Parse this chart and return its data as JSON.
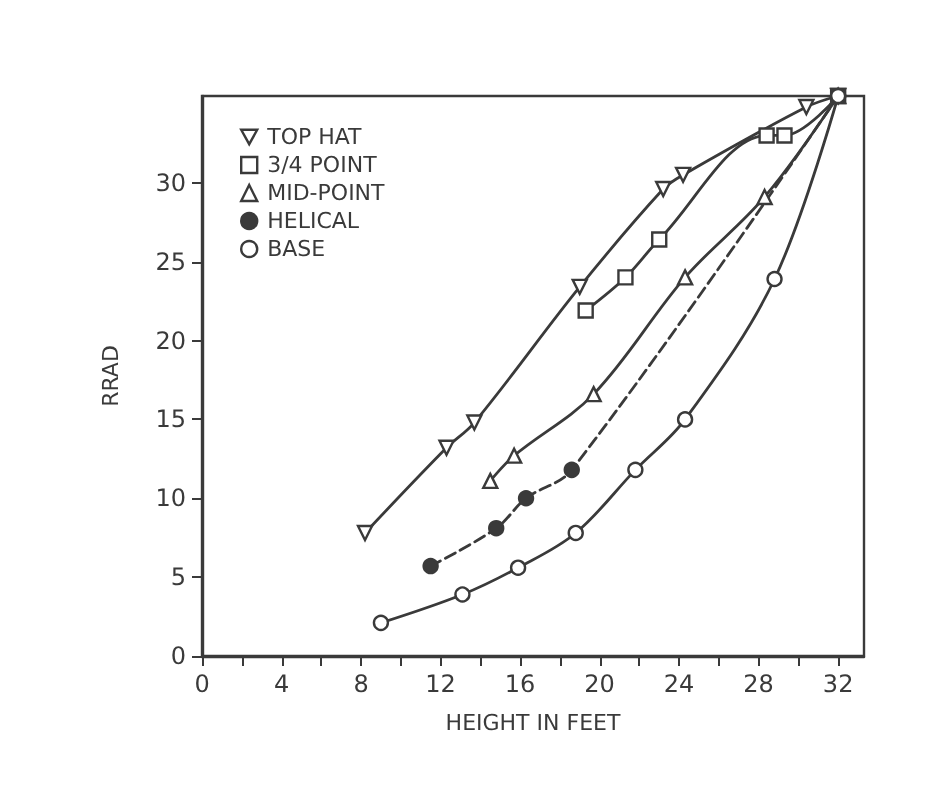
{
  "chart_data": {
    "type": "line",
    "xlabel": "HEIGHT IN FEET",
    "ylabel": "RRAD",
    "xlim": [
      0,
      33.3
    ],
    "ylim": [
      0,
      35.5
    ],
    "xticks": [
      0,
      {
        "value": 2,
        "label": null
      },
      4,
      {
        "value": 6,
        "label": null
      },
      8,
      {
        "value": 10,
        "label": null
      },
      12,
      {
        "value": 14,
        "label": null
      },
      16,
      {
        "value": 18,
        "label": null
      },
      20,
      {
        "value": 22,
        "label": null
      },
      24,
      {
        "value": 26,
        "label": null
      },
      28,
      {
        "value": 30,
        "label": null
      },
      32
    ],
    "yticks": [
      0,
      5,
      10,
      15,
      20,
      25,
      30
    ],
    "grid": false,
    "legend": "top left",
    "series": [
      {
        "name": "TOP HAT",
        "color": "#3a3a3a",
        "marker": "triangle-down",
        "line_style": "solid",
        "x": [
          8.2,
          12.3,
          13.7,
          19.0,
          23.2,
          24.2,
          30.4,
          32
        ],
        "values": [
          7.8,
          13.2,
          14.8,
          23.4,
          29.6,
          30.5,
          34.8,
          35.5
        ]
      },
      {
        "name": "3/4 POINT",
        "color": "#3a3a3a",
        "marker": "square",
        "line_style": "solid",
        "x": [
          19.3,
          21.3,
          23.0,
          28.4,
          29.3,
          32
        ],
        "values": [
          21.9,
          24.0,
          26.4,
          33.0,
          33.0,
          35.5
        ]
      },
      {
        "name": "MID-POINT",
        "color": "#3a3a3a",
        "marker": "triangle",
        "line_style": "solid",
        "x": [
          14.5,
          15.7,
          19.7,
          24.3,
          28.3,
          32
        ],
        "values": [
          11.1,
          12.7,
          16.6,
          24.0,
          29.1,
          35.5
        ]
      },
      {
        "name": "HELICAL",
        "color": "#3a3a3a",
        "marker": "filled-circle",
        "line_style": "dashed",
        "x": [
          11.5,
          14.8,
          16.3,
          18.6,
          32
        ],
        "values": [
          5.7,
          8.1,
          10.0,
          11.8,
          35.5
        ]
      },
      {
        "name": "BASE",
        "color": "#3a3a3a",
        "marker": "circle",
        "line_style": "solid",
        "x": [
          9.0,
          13.1,
          15.9,
          18.8,
          21.8,
          24.3,
          28.8,
          32
        ],
        "values": [
          2.1,
          3.9,
          5.6,
          7.8,
          11.8,
          15.0,
          23.9,
          35.5
        ]
      }
    ]
  }
}
